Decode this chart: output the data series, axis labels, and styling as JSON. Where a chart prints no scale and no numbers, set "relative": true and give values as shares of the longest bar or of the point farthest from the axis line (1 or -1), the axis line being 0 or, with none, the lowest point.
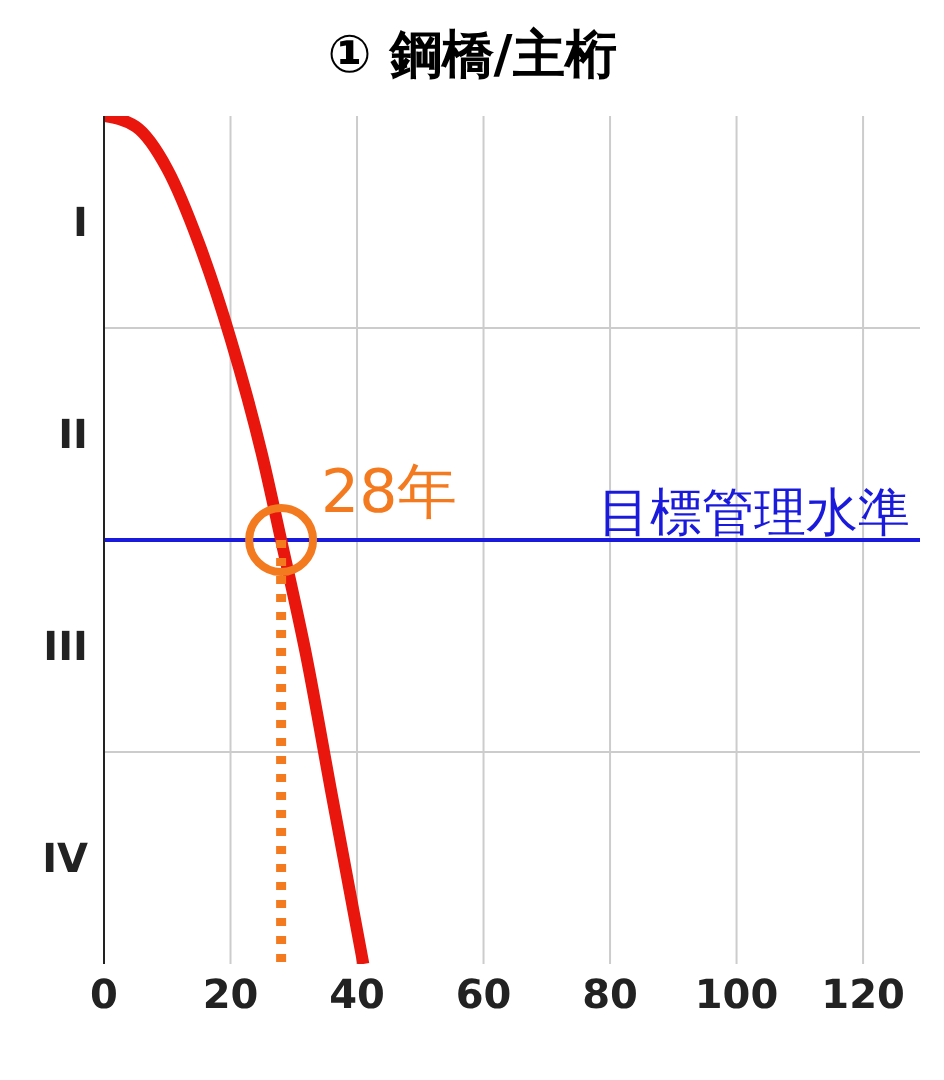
{
  "chart_data": {
    "type": "line",
    "title": "① 鋼橋/主桁",
    "relative": true,
    "xlim": [
      0,
      129
    ],
    "xticks": [
      0,
      20,
      40,
      60,
      80,
      100,
      120
    ],
    "grid": true,
    "series": [
      {
        "color": "#e8160c",
        "x": [
          0,
          5,
          10,
          15,
          20,
          25,
          28,
          32,
          36,
          41
        ],
        "values": [
          1,
          0.9875,
          0.9375,
          0.85,
          0.7375,
          0.6,
          0.5,
          0.3625,
          0.2,
          0
        ]
      },
      {
        "type": "line",
        "color": "#f47a20",
        "line_style": "dotted",
        "x": [
          28,
          28
        ],
        "values": [
          0.5,
          0
        ]
      },
      {
        "type": "scatter",
        "color": "#f47a20",
        "marker": "circle",
        "x": [
          28
        ],
        "values": [
          0.5
        ]
      }
    ],
    "ref_lines": [
      {
        "axis": "y",
        "value": 0.5,
        "label": "目標管理水準",
        "color": "#1a1adc"
      }
    ],
    "annotations": [
      "I",
      "II",
      "III",
      "IV",
      {
        "text": "28年",
        "x": 28,
        "y": 0.5
      }
    ]
  }
}
